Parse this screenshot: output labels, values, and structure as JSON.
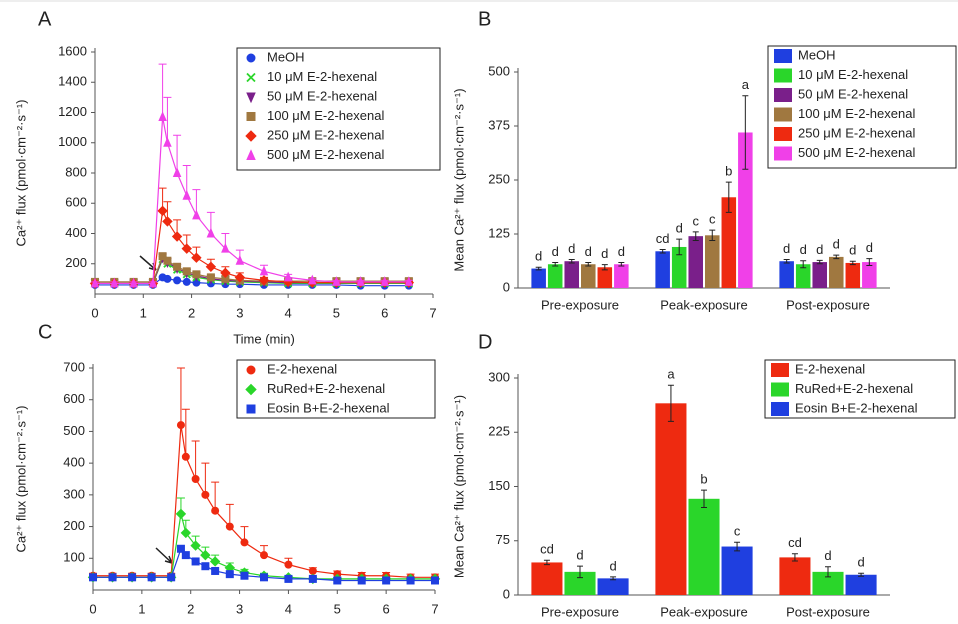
{
  "chart_data": [
    {
      "type": "line",
      "panel": "A",
      "xlabel": "Time (min)",
      "ylabel": "Ca²⁺ flux (pmol·cm⁻²·s⁻¹)",
      "xlim": [
        0,
        7
      ],
      "xticks": [
        0,
        1,
        2,
        3,
        4,
        5,
        6,
        7
      ],
      "ylim": [
        0,
        1600
      ],
      "yticks": [
        200,
        400,
        600,
        800,
        1000,
        1200,
        1400,
        1600
      ],
      "x": [
        0,
        0.4,
        0.8,
        1.2,
        1.4,
        1.5,
        1.7,
        1.9,
        2.1,
        2.4,
        2.7,
        3,
        3.5,
        4,
        4.5,
        5,
        5.5,
        6,
        6.5
      ],
      "series": [
        {
          "name": "MeOH",
          "color": "#1f3fe0",
          "marker": "circle",
          "values": [
            60,
            60,
            60,
            60,
            110,
            100,
            90,
            80,
            75,
            70,
            65,
            65,
            60,
            60,
            60,
            60,
            55,
            55,
            55
          ]
        },
        {
          "name": "10 μM E-2-hexenal",
          "color": "#2ad62a",
          "marker": "cross",
          "values": [
            70,
            70,
            70,
            70,
            230,
            200,
            160,
            130,
            110,
            95,
            85,
            80,
            75,
            70,
            70,
            70,
            70,
            70,
            70
          ]
        },
        {
          "name": "50 μM E-2-hexenal",
          "color": "#7a1f8a",
          "marker": "tri-down",
          "values": [
            70,
            70,
            70,
            70,
            240,
            210,
            170,
            140,
            120,
            100,
            90,
            85,
            80,
            75,
            75,
            75,
            75,
            75,
            75
          ]
        },
        {
          "name": "100 μM E-2-hexenal",
          "color": "#a07840",
          "marker": "square",
          "values": [
            80,
            80,
            80,
            80,
            250,
            220,
            180,
            150,
            130,
            110,
            100,
            90,
            85,
            85,
            85,
            85,
            85,
            85,
            85
          ]
        },
        {
          "name": "250 μM E-2-hexenal",
          "color": "#ee2a10",
          "marker": "diamond",
          "values": [
            70,
            70,
            70,
            70,
            550,
            480,
            380,
            300,
            240,
            180,
            140,
            110,
            90,
            80,
            75,
            75,
            75,
            75,
            75
          ],
          "errors": [
            10,
            10,
            10,
            10,
            150,
            130,
            110,
            90,
            70,
            50,
            40,
            30,
            20,
            10,
            10,
            10,
            10,
            10,
            10
          ]
        },
        {
          "name": "500 μM E-2-hexenal",
          "color": "#f040e8",
          "marker": "tri-up",
          "values": [
            70,
            70,
            70,
            70,
            1170,
            1000,
            800,
            650,
            520,
            400,
            300,
            220,
            150,
            110,
            90,
            80,
            80,
            80,
            80
          ],
          "errors": [
            10,
            10,
            10,
            10,
            350,
            300,
            250,
            200,
            170,
            140,
            100,
            70,
            40,
            20,
            10,
            10,
            10,
            10,
            10
          ]
        }
      ]
    },
    {
      "type": "bar",
      "panel": "B",
      "ylabel": "Mean Ca²⁺ flux (pmol·cm⁻²·s⁻¹)",
      "categories": [
        "Pre-exposure",
        "Peak-exposure",
        "Post-exposure"
      ],
      "ylim": [
        0,
        500
      ],
      "yticks": [
        0,
        125,
        250,
        375,
        500
      ],
      "series": [
        {
          "name": "MeOH",
          "color": "#1f3fe0",
          "values": [
            45,
            85,
            62
          ],
          "errors": [
            3,
            4,
            4
          ],
          "letters": [
            "d",
            "cd",
            "d"
          ]
        },
        {
          "name": "10 μM E-2-hexenal",
          "color": "#2ad62a",
          "values": [
            55,
            95,
            55
          ],
          "errors": [
            4,
            18,
            8
          ],
          "letters": [
            "d",
            "d",
            "d"
          ]
        },
        {
          "name": "50 μM E-2-hexenal",
          "color": "#7a1f8a",
          "values": [
            62,
            120,
            60
          ],
          "errors": [
            4,
            10,
            4
          ],
          "letters": [
            "d",
            "c",
            "d"
          ]
        },
        {
          "name": "100 μM E-2-hexenal",
          "color": "#a07840",
          "values": [
            55,
            122,
            72
          ],
          "errors": [
            4,
            12,
            4
          ],
          "letters": [
            "d",
            "c",
            "d"
          ]
        },
        {
          "name": "250 μM E-2-hexenal",
          "color": "#ee2a10",
          "values": [
            48,
            210,
            58
          ],
          "errors": [
            6,
            35,
            4
          ],
          "letters": [
            "d",
            "b",
            "d"
          ]
        },
        {
          "name": "500 μM E-2-hexenal",
          "color": "#f040e8",
          "values": [
            55,
            360,
            60
          ],
          "errors": [
            4,
            85,
            8
          ],
          "letters": [
            "d",
            "a",
            "d"
          ]
        }
      ]
    },
    {
      "type": "line",
      "panel": "C",
      "ylabel": "Ca²⁺ flux (pmol·cm⁻²·s⁻¹)",
      "xlim": [
        0,
        7
      ],
      "xticks": [
        0,
        1,
        2,
        3,
        4,
        5,
        6,
        7
      ],
      "ylim": [
        0,
        700
      ],
      "yticks": [
        100,
        200,
        300,
        400,
        500,
        600,
        700
      ],
      "x": [
        0,
        0.4,
        0.8,
        1.2,
        1.6,
        1.8,
        1.9,
        2.1,
        2.3,
        2.5,
        2.8,
        3.1,
        3.5,
        4,
        4.5,
        5,
        5.5,
        6,
        6.5,
        7
      ],
      "series": [
        {
          "name": "E-2-hexenal",
          "color": "#ee2a10",
          "marker": "circle",
          "values": [
            45,
            45,
            45,
            45,
            45,
            520,
            420,
            350,
            300,
            250,
            200,
            150,
            110,
            80,
            60,
            50,
            45,
            45,
            40,
            40
          ],
          "errors": [
            8,
            8,
            8,
            8,
            8,
            180,
            150,
            120,
            100,
            90,
            70,
            50,
            30,
            20,
            10,
            10,
            10,
            10,
            10,
            10
          ]
        },
        {
          "name": "RuRed+E-2-hexenal",
          "color": "#2ad62a",
          "marker": "diamond",
          "values": [
            40,
            40,
            40,
            40,
            40,
            240,
            180,
            140,
            110,
            90,
            70,
            55,
            45,
            40,
            35,
            35,
            35,
            35,
            35,
            35
          ],
          "errors": [
            6,
            6,
            6,
            6,
            6,
            50,
            40,
            30,
            25,
            20,
            15,
            10,
            8,
            5,
            5,
            5,
            5,
            5,
            5,
            5
          ]
        },
        {
          "name": "Eosin B+E-2-hexenal",
          "color": "#1f3fe0",
          "marker": "square",
          "values": [
            40,
            40,
            40,
            40,
            40,
            130,
            110,
            90,
            75,
            60,
            50,
            45,
            40,
            35,
            35,
            30,
            30,
            30,
            30,
            30
          ]
        }
      ]
    },
    {
      "type": "bar",
      "panel": "D",
      "ylabel": "Mean Ca²⁺ flux (pmol·cm⁻²·s⁻¹)",
      "categories": [
        "Pre-exposure",
        "Peak-exposure",
        "Post-exposure"
      ],
      "ylim": [
        0,
        300
      ],
      "yticks": [
        0,
        75,
        150,
        225,
        300
      ],
      "series": [
        {
          "name": "E-2-hexenal",
          "color": "#ee2a10",
          "values": [
            45,
            265,
            52
          ],
          "errors": [
            3,
            25,
            5
          ],
          "letters": [
            "cd",
            "a",
            "cd"
          ]
        },
        {
          "name": "RuRed+E-2-hexenal",
          "color": "#2ad62a",
          "values": [
            32,
            133,
            32
          ],
          "errors": [
            8,
            12,
            7
          ],
          "letters": [
            "d",
            "b",
            "d"
          ]
        },
        {
          "name": "Eosin B+E-2-hexenal",
          "color": "#1f3fe0",
          "values": [
            23,
            67,
            28
          ],
          "errors": [
            2,
            6,
            2
          ],
          "letters": [
            "d",
            "c",
            "d"
          ]
        }
      ]
    }
  ]
}
